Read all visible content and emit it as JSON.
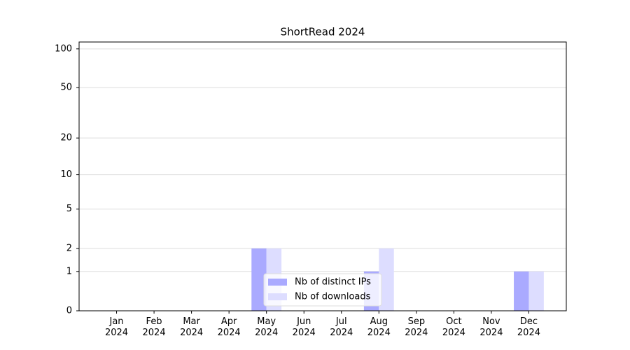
{
  "chart_data": {
    "type": "bar",
    "title": "ShortRead 2024",
    "categories": [
      "Jan 2024",
      "Feb 2024",
      "Mar 2024",
      "Apr 2024",
      "May 2024",
      "Jun 2024",
      "Jul 2024",
      "Aug 2024",
      "Sep 2024",
      "Oct 2024",
      "Nov 2024",
      "Dec 2024"
    ],
    "series": [
      {
        "name": "Nb of distinct IPs",
        "color": "#aaaaff",
        "values": [
          0,
          0,
          0,
          0,
          2,
          0,
          0,
          1,
          0,
          0,
          0,
          1
        ]
      },
      {
        "name": "Nb of downloads",
        "color": "#ddddff",
        "values": [
          0,
          0,
          0,
          0,
          2,
          0,
          0,
          2,
          0,
          0,
          0,
          1
        ]
      }
    ],
    "yscale": "log1p",
    "ylim": [
      0,
      113
    ],
    "yticks": [
      0,
      1,
      2,
      5,
      10,
      20,
      50,
      100
    ],
    "grid": true,
    "legend": "lower center"
  }
}
